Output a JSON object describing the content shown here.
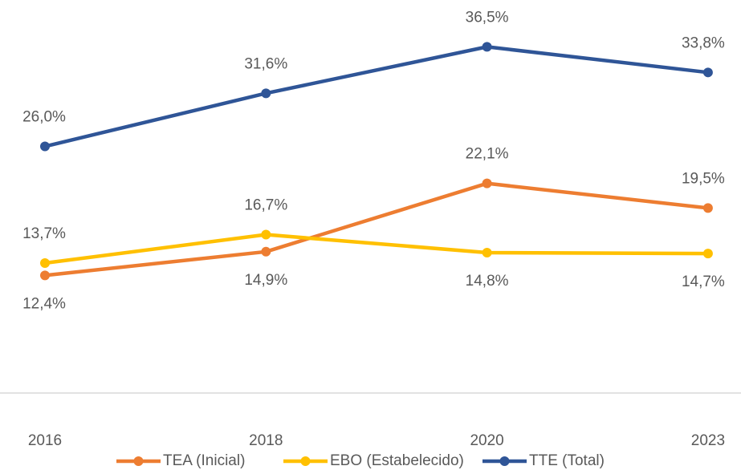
{
  "chart_data": {
    "type": "line",
    "categories": [
      "2016",
      "2018",
      "2020",
      "2023"
    ],
    "ylim": [
      0,
      40
    ],
    "series": [
      {
        "name": "TEA (Inicial)",
        "color": "#ed7d31",
        "values": [
          12.4,
          14.9,
          22.1,
          19.5
        ],
        "value_labels": [
          "12,4%",
          "14,9%",
          "22,1%",
          "19,5%"
        ]
      },
      {
        "name": "EBO (Estabelecido)",
        "color": "#ffc000",
        "values": [
          13.7,
          16.7,
          14.8,
          14.7
        ],
        "value_labels": [
          "13,7%",
          "16,7%",
          "14,8%",
          "14,7%"
        ]
      },
      {
        "name": "TTE (Total)",
        "color": "#2f5597",
        "values": [
          26.0,
          31.6,
          36.5,
          33.8
        ],
        "value_labels": [
          "26,0%",
          "31,6%",
          "36,5%",
          "33,8%"
        ]
      }
    ]
  }
}
